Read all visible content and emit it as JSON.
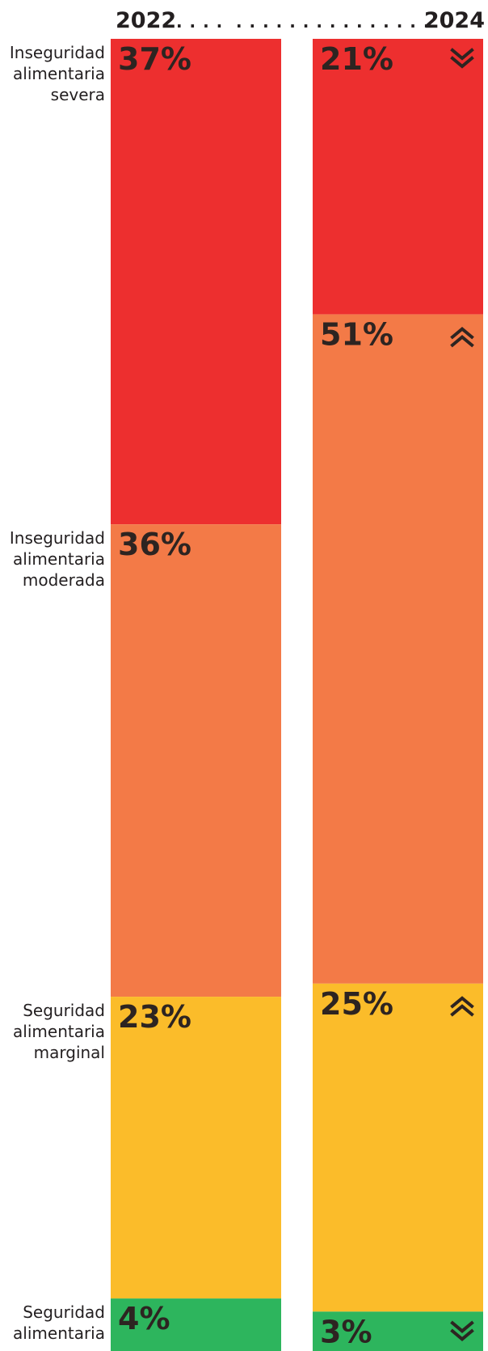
{
  "chart_data": {
    "type": "bar",
    "subtype": "stacked-100-percent",
    "header": {
      "left_year": "2022",
      "right_year": "2024",
      "dots_left": ". . . .",
      "dots_right": ". . . . . . . . . . . . . . ."
    },
    "categories": [
      "2022",
      "2024"
    ],
    "series": [
      {
        "name": "Inseguridad alimentaria severa",
        "label_lines": [
          "Inseguridad",
          "alimentaria",
          "severa"
        ],
        "color": "#ed2f2f",
        "values": [
          37,
          21
        ],
        "value_labels": [
          "37%",
          "21%"
        ],
        "trend_2024": "down"
      },
      {
        "name": "Inseguridad alimentaria moderada",
        "label_lines": [
          "Inseguridad",
          "alimentaria",
          "moderada"
        ],
        "color": "#f37a47",
        "values": [
          36,
          51
        ],
        "value_labels": [
          "36%",
          "51%"
        ],
        "trend_2024": "up"
      },
      {
        "name": "Seguridad alimentaria marginal",
        "label_lines": [
          "Seguridad",
          "alimentaria",
          "marginal"
        ],
        "color": "#fbbc2a",
        "values": [
          23,
          25
        ],
        "value_labels": [
          "23%",
          "25%"
        ],
        "trend_2024": "up"
      },
      {
        "name": "Seguridad alimentaria",
        "label_lines": [
          "Seguridad",
          "alimentaria"
        ],
        "color": "#2db55d",
        "values": [
          4,
          3
        ],
        "value_labels": [
          "4%",
          "3%"
        ],
        "trend_2024": "down"
      }
    ],
    "ylim": [
      0,
      100
    ]
  }
}
